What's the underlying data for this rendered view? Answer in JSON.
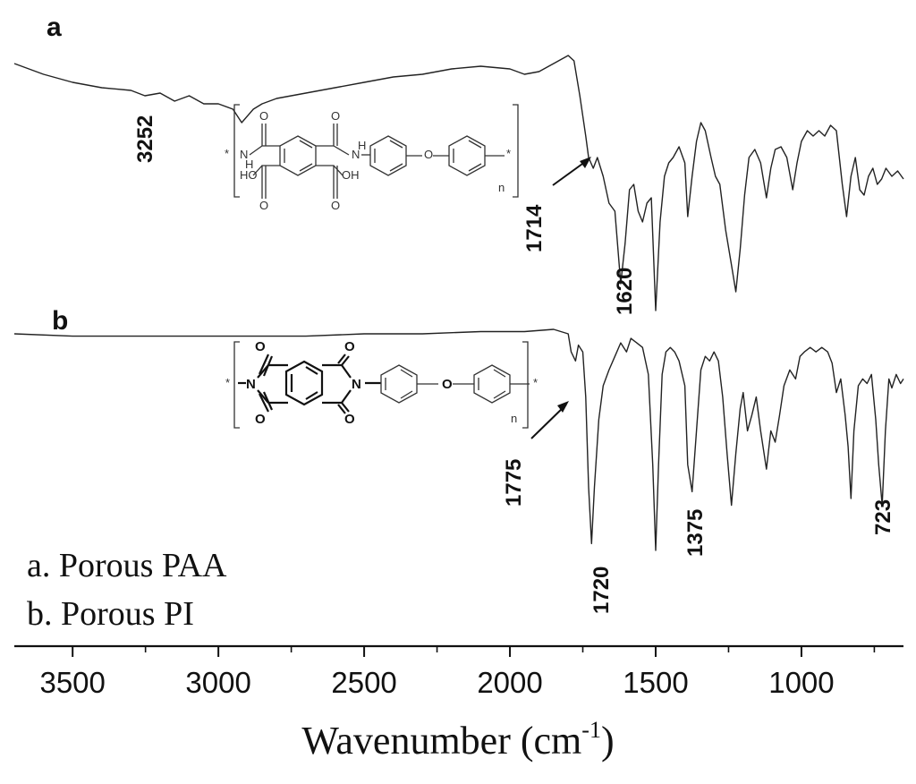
{
  "chart_data": {
    "type": "line",
    "xlabel_main": "Wavenumber (cm",
    "xlabel_sup": "-1",
    "xlabel_close": ")",
    "xlim": [
      3700,
      650
    ],
    "x_reversed": true,
    "xticks": [
      {
        "value": 3500,
        "label": "3500"
      },
      {
        "value": 3000,
        "label": "3000"
      },
      {
        "value": 2500,
        "label": "2500"
      },
      {
        "value": 2000,
        "label": "2000"
      },
      {
        "value": 1500,
        "label": "1500"
      },
      {
        "value": 1000,
        "label": "1000"
      }
    ],
    "y_axis_shown": false,
    "legend": {
      "position": "bottom-left",
      "entries": [
        "a. Porous PAA",
        "b. Porous PI"
      ]
    },
    "series": [
      {
        "panel": "a",
        "points": [
          [
            3700,
            0.97
          ],
          [
            3600,
            0.93
          ],
          [
            3500,
            0.9
          ],
          [
            3400,
            0.88
          ],
          [
            3300,
            0.87
          ],
          [
            3252,
            0.85
          ],
          [
            3200,
            0.86
          ],
          [
            3150,
            0.83
          ],
          [
            3100,
            0.85
          ],
          [
            3050,
            0.82
          ],
          [
            3000,
            0.82
          ],
          [
            2950,
            0.8
          ],
          [
            2920,
            0.75
          ],
          [
            2880,
            0.8
          ],
          [
            2850,
            0.82
          ],
          [
            2800,
            0.84
          ],
          [
            2700,
            0.86
          ],
          [
            2600,
            0.88
          ],
          [
            2500,
            0.9
          ],
          [
            2400,
            0.92
          ],
          [
            2300,
            0.93
          ],
          [
            2200,
            0.95
          ],
          [
            2100,
            0.96
          ],
          [
            2000,
            0.95
          ],
          [
            1950,
            0.93
          ],
          [
            1900,
            0.94
          ],
          [
            1850,
            0.97
          ],
          [
            1800,
            1.0
          ],
          [
            1780,
            0.98
          ],
          [
            1760,
            0.85
          ],
          [
            1740,
            0.7
          ],
          [
            1730,
            0.62
          ],
          [
            1714,
            0.58
          ],
          [
            1700,
            0.62
          ],
          [
            1680,
            0.55
          ],
          [
            1660,
            0.45
          ],
          [
            1640,
            0.42
          ],
          [
            1620,
            0.15
          ],
          [
            1605,
            0.3
          ],
          [
            1590,
            0.5
          ],
          [
            1575,
            0.52
          ],
          [
            1560,
            0.42
          ],
          [
            1545,
            0.38
          ],
          [
            1530,
            0.45
          ],
          [
            1515,
            0.47
          ],
          [
            1500,
            0.05
          ],
          [
            1485,
            0.38
          ],
          [
            1470,
            0.55
          ],
          [
            1455,
            0.6
          ],
          [
            1440,
            0.62
          ],
          [
            1420,
            0.66
          ],
          [
            1400,
            0.6
          ],
          [
            1390,
            0.4
          ],
          [
            1375,
            0.55
          ],
          [
            1360,
            0.68
          ],
          [
            1345,
            0.75
          ],
          [
            1330,
            0.72
          ],
          [
            1310,
            0.62
          ],
          [
            1295,
            0.55
          ],
          [
            1280,
            0.52
          ],
          [
            1260,
            0.35
          ],
          [
            1240,
            0.22
          ],
          [
            1225,
            0.12
          ],
          [
            1210,
            0.28
          ],
          [
            1195,
            0.48
          ],
          [
            1180,
            0.62
          ],
          [
            1160,
            0.65
          ],
          [
            1140,
            0.6
          ],
          [
            1120,
            0.47
          ],
          [
            1105,
            0.58
          ],
          [
            1090,
            0.65
          ],
          [
            1070,
            0.66
          ],
          [
            1050,
            0.62
          ],
          [
            1030,
            0.5
          ],
          [
            1015,
            0.6
          ],
          [
            1000,
            0.68
          ],
          [
            980,
            0.72
          ],
          [
            960,
            0.7
          ],
          [
            940,
            0.72
          ],
          [
            920,
            0.7
          ],
          [
            900,
            0.74
          ],
          [
            880,
            0.72
          ],
          [
            860,
            0.52
          ],
          [
            845,
            0.4
          ],
          [
            830,
            0.55
          ],
          [
            815,
            0.62
          ],
          [
            800,
            0.5
          ],
          [
            785,
            0.48
          ],
          [
            770,
            0.55
          ],
          [
            755,
            0.58
          ],
          [
            740,
            0.52
          ],
          [
            725,
            0.54
          ],
          [
            710,
            0.58
          ],
          [
            690,
            0.55
          ],
          [
            670,
            0.57
          ],
          [
            650,
            0.54
          ]
        ]
      },
      {
        "panel": "b",
        "points": [
          [
            3700,
            0.98
          ],
          [
            3500,
            0.97
          ],
          [
            3300,
            0.97
          ],
          [
            3100,
            0.97
          ],
          [
            2900,
            0.97
          ],
          [
            2700,
            0.97
          ],
          [
            2500,
            0.98
          ],
          [
            2300,
            0.98
          ],
          [
            2100,
            0.99
          ],
          [
            1950,
            0.99
          ],
          [
            1850,
            1.0
          ],
          [
            1800,
            0.98
          ],
          [
            1790,
            0.9
          ],
          [
            1775,
            0.86
          ],
          [
            1765,
            0.93
          ],
          [
            1750,
            0.9
          ],
          [
            1740,
            0.7
          ],
          [
            1730,
            0.3
          ],
          [
            1720,
            0.05
          ],
          [
            1710,
            0.3
          ],
          [
            1695,
            0.6
          ],
          [
            1680,
            0.75
          ],
          [
            1660,
            0.82
          ],
          [
            1640,
            0.88
          ],
          [
            1620,
            0.94
          ],
          [
            1600,
            0.9
          ],
          [
            1585,
            0.96
          ],
          [
            1565,
            0.94
          ],
          [
            1545,
            0.92
          ],
          [
            1525,
            0.8
          ],
          [
            1510,
            0.4
          ],
          [
            1500,
            0.02
          ],
          [
            1490,
            0.4
          ],
          [
            1478,
            0.8
          ],
          [
            1465,
            0.9
          ],
          [
            1450,
            0.92
          ],
          [
            1435,
            0.9
          ],
          [
            1420,
            0.86
          ],
          [
            1400,
            0.75
          ],
          [
            1390,
            0.4
          ],
          [
            1375,
            0.28
          ],
          [
            1360,
            0.55
          ],
          [
            1345,
            0.82
          ],
          [
            1330,
            0.88
          ],
          [
            1315,
            0.86
          ],
          [
            1300,
            0.9
          ],
          [
            1285,
            0.86
          ],
          [
            1270,
            0.7
          ],
          [
            1255,
            0.45
          ],
          [
            1240,
            0.22
          ],
          [
            1225,
            0.45
          ],
          [
            1210,
            0.65
          ],
          [
            1200,
            0.72
          ],
          [
            1185,
            0.55
          ],
          [
            1170,
            0.62
          ],
          [
            1155,
            0.7
          ],
          [
            1140,
            0.55
          ],
          [
            1120,
            0.38
          ],
          [
            1105,
            0.55
          ],
          [
            1090,
            0.5
          ],
          [
            1075,
            0.62
          ],
          [
            1060,
            0.75
          ],
          [
            1040,
            0.82
          ],
          [
            1020,
            0.78
          ],
          [
            1005,
            0.88
          ],
          [
            990,
            0.9
          ],
          [
            970,
            0.92
          ],
          [
            950,
            0.9
          ],
          [
            930,
            0.92
          ],
          [
            910,
            0.9
          ],
          [
            895,
            0.85
          ],
          [
            880,
            0.72
          ],
          [
            865,
            0.78
          ],
          [
            850,
            0.62
          ],
          [
            840,
            0.48
          ],
          [
            830,
            0.25
          ],
          [
            820,
            0.55
          ],
          [
            805,
            0.75
          ],
          [
            790,
            0.78
          ],
          [
            775,
            0.76
          ],
          [
            760,
            0.8
          ],
          [
            745,
            0.6
          ],
          [
            735,
            0.4
          ],
          [
            723,
            0.22
          ],
          [
            712,
            0.55
          ],
          [
            700,
            0.78
          ],
          [
            690,
            0.74
          ],
          [
            675,
            0.8
          ],
          [
            660,
            0.76
          ],
          [
            650,
            0.78
          ]
        ]
      }
    ],
    "annotations": {
      "panel_a_label": "a",
      "panel_b_label": "b",
      "peaks": [
        {
          "panel": "a",
          "label": "3252",
          "x": 3252
        },
        {
          "panel": "a",
          "label": "1714",
          "x": 1714,
          "arrow": true
        },
        {
          "panel": "a",
          "label": "1620",
          "x": 1620
        },
        {
          "panel": "b",
          "label": "1775",
          "x": 1775,
          "arrow": true
        },
        {
          "panel": "b",
          "label": "1720",
          "x": 1720
        },
        {
          "panel": "b",
          "label": "1375",
          "x": 1375
        },
        {
          "panel": "b",
          "label": "723",
          "x": 723
        }
      ]
    },
    "structures": {
      "paa": {
        "atoms": [
          "*",
          "N",
          "H",
          "O",
          "O",
          "HO",
          "OH",
          "O",
          "O",
          "N",
          "H",
          "O",
          "*",
          "n"
        ]
      },
      "pi": {
        "atoms": [
          "*",
          "O",
          "O",
          "N",
          "O",
          "O",
          "N",
          "O",
          "*",
          "n"
        ]
      }
    }
  }
}
